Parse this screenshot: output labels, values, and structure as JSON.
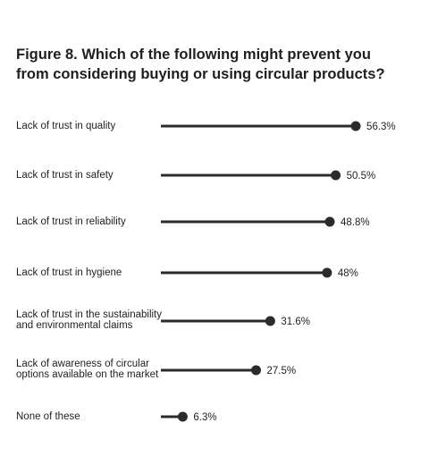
{
  "title_lines": [
    "Figure 8. Which of the following might prevent you",
    "from considering buying or using circular products?"
  ],
  "chart_data": {
    "type": "lollipop",
    "title": "Figure 8. Which of the following might prevent you from considering buying or using circular products?",
    "categories": [
      [
        "Lack of trust in quality"
      ],
      [
        "Lack of trust in safety"
      ],
      [
        "Lack of trust in reliability"
      ],
      [
        "Lack of trust in hygiene"
      ],
      [
        "Lack of trust in the sustainability",
        "and environmental claims"
      ],
      [
        "Lack of awareness of circular",
        "options available on the market"
      ],
      [
        "None of these"
      ]
    ],
    "values": [
      56.3,
      50.5,
      48.8,
      48,
      31.6,
      27.5,
      6.3
    ],
    "value_labels": [
      "56.3%",
      "50.5%",
      "48.8%",
      "48%",
      "31.6%",
      "27.5%",
      "6.3%"
    ],
    "unit": "%",
    "xlim": [
      0,
      63
    ],
    "colors": {
      "line": "#2b2b2b",
      "dot": "#2b2b2b",
      "text": "#1f1f1f"
    }
  }
}
